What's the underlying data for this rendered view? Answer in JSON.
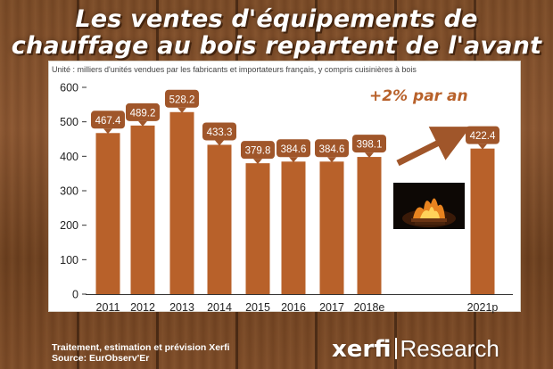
{
  "header": {
    "title_line1": "Les ventes d'équipements de",
    "title_line2": "chauffage au bois repartent de l'avant"
  },
  "chart_data": {
    "type": "bar",
    "unit_note": "Unité : milliers d'unités vendues par les fabricants et importateurs français, y compris cuisinières à bois",
    "categories": [
      "2011",
      "2012",
      "2013",
      "2014",
      "2015",
      "2016",
      "2017",
      "2018e",
      "2021p"
    ],
    "values": [
      467.4,
      489.2,
      528.2,
      433.3,
      379.8,
      384.6,
      384.6,
      398.1,
      422.4
    ],
    "value_labels": [
      "467.4",
      "489.2",
      "528.2",
      "433.3",
      "379.8",
      "384.6",
      "384.6",
      "398.1",
      "422.4"
    ],
    "ylim": [
      0,
      600
    ],
    "yticks": [
      "0",
      "100",
      "200",
      "300",
      "400",
      "500",
      "600"
    ],
    "grid": false,
    "bar_color": "#b8612a",
    "annotation": "+2% par an"
  },
  "footer": {
    "line1": "Traitement, estimation et prévision Xerfi",
    "line2": "Source: EurObserv'Er"
  },
  "brand": {
    "name": "xerfi",
    "suffix": "Research"
  },
  "fire_image": "fireplace-photo"
}
